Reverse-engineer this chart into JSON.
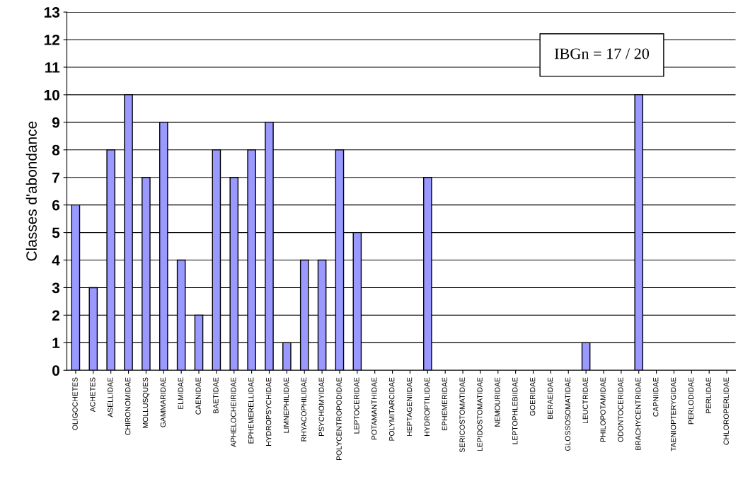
{
  "chart_data": {
    "type": "bar",
    "ylabel": "Classes d'abondance",
    "categories": [
      "OLIGOCHETES",
      "ACHETES",
      "ASELLIDAE",
      "CHIRONOMIDAE",
      "MOLLUSQUES",
      "GAMMARIDAE",
      "ELMIDAE",
      "CAENIDAE",
      "BAETIDAE",
      "APHELOCHEIRIDAE",
      "EPHEMERELLIDAE",
      "HYDROPSYCHIDAE",
      "LIMNEPHILIDAE",
      "RHYACOPHILIDAE",
      "PSYCHOMYIDAE",
      "POLYCENTROPODIDAE",
      "LEPTOCERIDAE",
      "POTAMANTHIDAE",
      "POLYMITARCIDAE",
      "HEPTAGENIIDAE",
      "HYDROPTILIDAE",
      "EPHEMERIDAE",
      "SERICOSTOMATIDAE",
      "LEPIDOSTOMATIDAE",
      "NEMOURIDAE",
      "LEPTOPHLEBIIDAE",
      "GOERIDAE",
      "BERAEIDAE",
      "GLOSSOSOMATIDAE",
      "LEUCTRIDAE",
      "PHILOPOTAMIDAE",
      "ODONTOCERIDAE",
      "BRACHYCENTRIDAE",
      "CAPNIIDAE",
      "TAENIOPTERYGIDAE",
      "PERLODIDAE",
      "PERLIDAE",
      "CHLOROPERLIDAE"
    ],
    "values": [
      6,
      3,
      8,
      10,
      7,
      9,
      4,
      2,
      8,
      7,
      8,
      9,
      1,
      4,
      4,
      8,
      5,
      0,
      0,
      0,
      7,
      0,
      0,
      0,
      0,
      0,
      0,
      0,
      0,
      1,
      0,
      0,
      10,
      0,
      0,
      0,
      0,
      0
    ],
    "color": "#9999ff",
    "ylim": [
      0,
      13
    ],
    "yticks": [
      0,
      1,
      2,
      3,
      4,
      5,
      6,
      7,
      8,
      9,
      10,
      11,
      12,
      13
    ],
    "grid": "y",
    "legend": false,
    "annotations": [
      "IBGn = 17 / 20"
    ]
  }
}
